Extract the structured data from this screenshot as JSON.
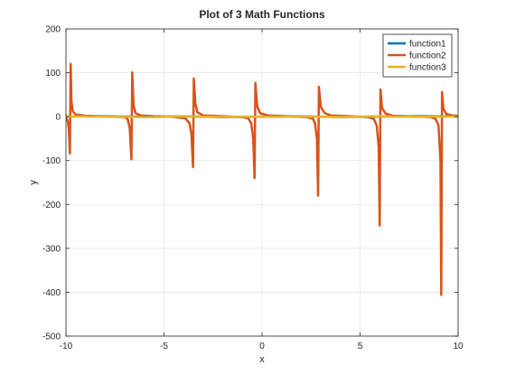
{
  "chart_data": {
    "type": "line",
    "title": "Plot of 3 Math Functions",
    "xlabel": "x",
    "ylabel": "y",
    "xlim": [
      -10,
      10
    ],
    "ylim": [
      -500,
      200
    ],
    "xticks": [
      -10,
      -5,
      0,
      5,
      10
    ],
    "yticks": [
      200,
      100,
      0,
      -100,
      -200,
      -300,
      -400,
      -500
    ],
    "grid": true,
    "legend_position": "top-right",
    "series": [
      {
        "name": "function1",
        "color": "#0072BD",
        "points": [
          [
            -10,
            0.5
          ],
          [
            -8,
            1.0
          ],
          [
            -6,
            -0.3
          ],
          [
            -4,
            0.8
          ],
          [
            -2,
            -1.0
          ],
          [
            0,
            0.0
          ],
          [
            2,
            0.9
          ],
          [
            4,
            -0.8
          ],
          [
            6,
            0.3
          ],
          [
            8,
            1.0
          ],
          [
            10,
            0.5
          ]
        ]
      },
      {
        "name": "function2",
        "color": "#D95319",
        "points": [
          [
            -10,
            -3
          ],
          [
            -9.95,
            -6
          ],
          [
            -9.9,
            -12
          ],
          [
            -9.85,
            -30
          ],
          [
            -9.8,
            -84
          ],
          [
            -9.76,
            120
          ],
          [
            -9.72,
            35
          ],
          [
            -9.65,
            12
          ],
          [
            -9.5,
            5
          ],
          [
            -9.0,
            2
          ],
          [
            -8.0,
            0.5
          ],
          [
            -7.0,
            -1
          ],
          [
            -6.85,
            -6
          ],
          [
            -6.75,
            -25
          ],
          [
            -6.66,
            -97
          ],
          [
            -6.62,
            101
          ],
          [
            -6.55,
            25
          ],
          [
            -6.45,
            8
          ],
          [
            -6.2,
            3
          ],
          [
            -5.5,
            1
          ],
          [
            -4.5,
            -0.5
          ],
          [
            -3.9,
            -4
          ],
          [
            -3.7,
            -15
          ],
          [
            -3.6,
            -40
          ],
          [
            -3.52,
            -115
          ],
          [
            -3.48,
            87
          ],
          [
            -3.4,
            30
          ],
          [
            -3.3,
            10
          ],
          [
            -3.0,
            3
          ],
          [
            -2.0,
            1
          ],
          [
            -1.0,
            -1
          ],
          [
            -0.7,
            -4
          ],
          [
            -0.55,
            -15
          ],
          [
            -0.45,
            -50
          ],
          [
            -0.38,
            -140
          ],
          [
            -0.34,
            77
          ],
          [
            -0.25,
            25
          ],
          [
            -0.1,
            8
          ],
          [
            0.3,
            3
          ],
          [
            1.3,
            1
          ],
          [
            2.3,
            -1
          ],
          [
            2.6,
            -5
          ],
          [
            2.7,
            -15
          ],
          [
            2.8,
            -50
          ],
          [
            2.86,
            -180
          ],
          [
            2.9,
            68
          ],
          [
            3.0,
            22
          ],
          [
            3.2,
            8
          ],
          [
            3.5,
            3
          ],
          [
            4.5,
            1
          ],
          [
            5.4,
            -1
          ],
          [
            5.7,
            -5
          ],
          [
            5.85,
            -20
          ],
          [
            5.95,
            -70
          ],
          [
            6.0,
            -248
          ],
          [
            6.04,
            62
          ],
          [
            6.12,
            20
          ],
          [
            6.3,
            7
          ],
          [
            6.7,
            2
          ],
          [
            7.7,
            0.5
          ],
          [
            8.6,
            -1
          ],
          [
            8.85,
            -5
          ],
          [
            9.0,
            -20
          ],
          [
            9.1,
            -100
          ],
          [
            9.14,
            -406
          ],
          [
            9.18,
            56
          ],
          [
            9.25,
            18
          ],
          [
            9.4,
            6
          ],
          [
            9.7,
            3
          ],
          [
            10,
            2
          ]
        ]
      },
      {
        "name": "function3",
        "color": "#EDB120",
        "points": [
          [
            -10,
            0.9
          ],
          [
            -8,
            0.2
          ],
          [
            -6,
            -0.9
          ],
          [
            -4,
            0.6
          ],
          [
            -2,
            -0.4
          ],
          [
            0,
            0.0
          ],
          [
            2,
            0.4
          ],
          [
            4,
            -0.6
          ],
          [
            6,
            0.9
          ],
          [
            8,
            -0.2
          ],
          [
            10,
            0.5
          ]
        ]
      }
    ]
  }
}
